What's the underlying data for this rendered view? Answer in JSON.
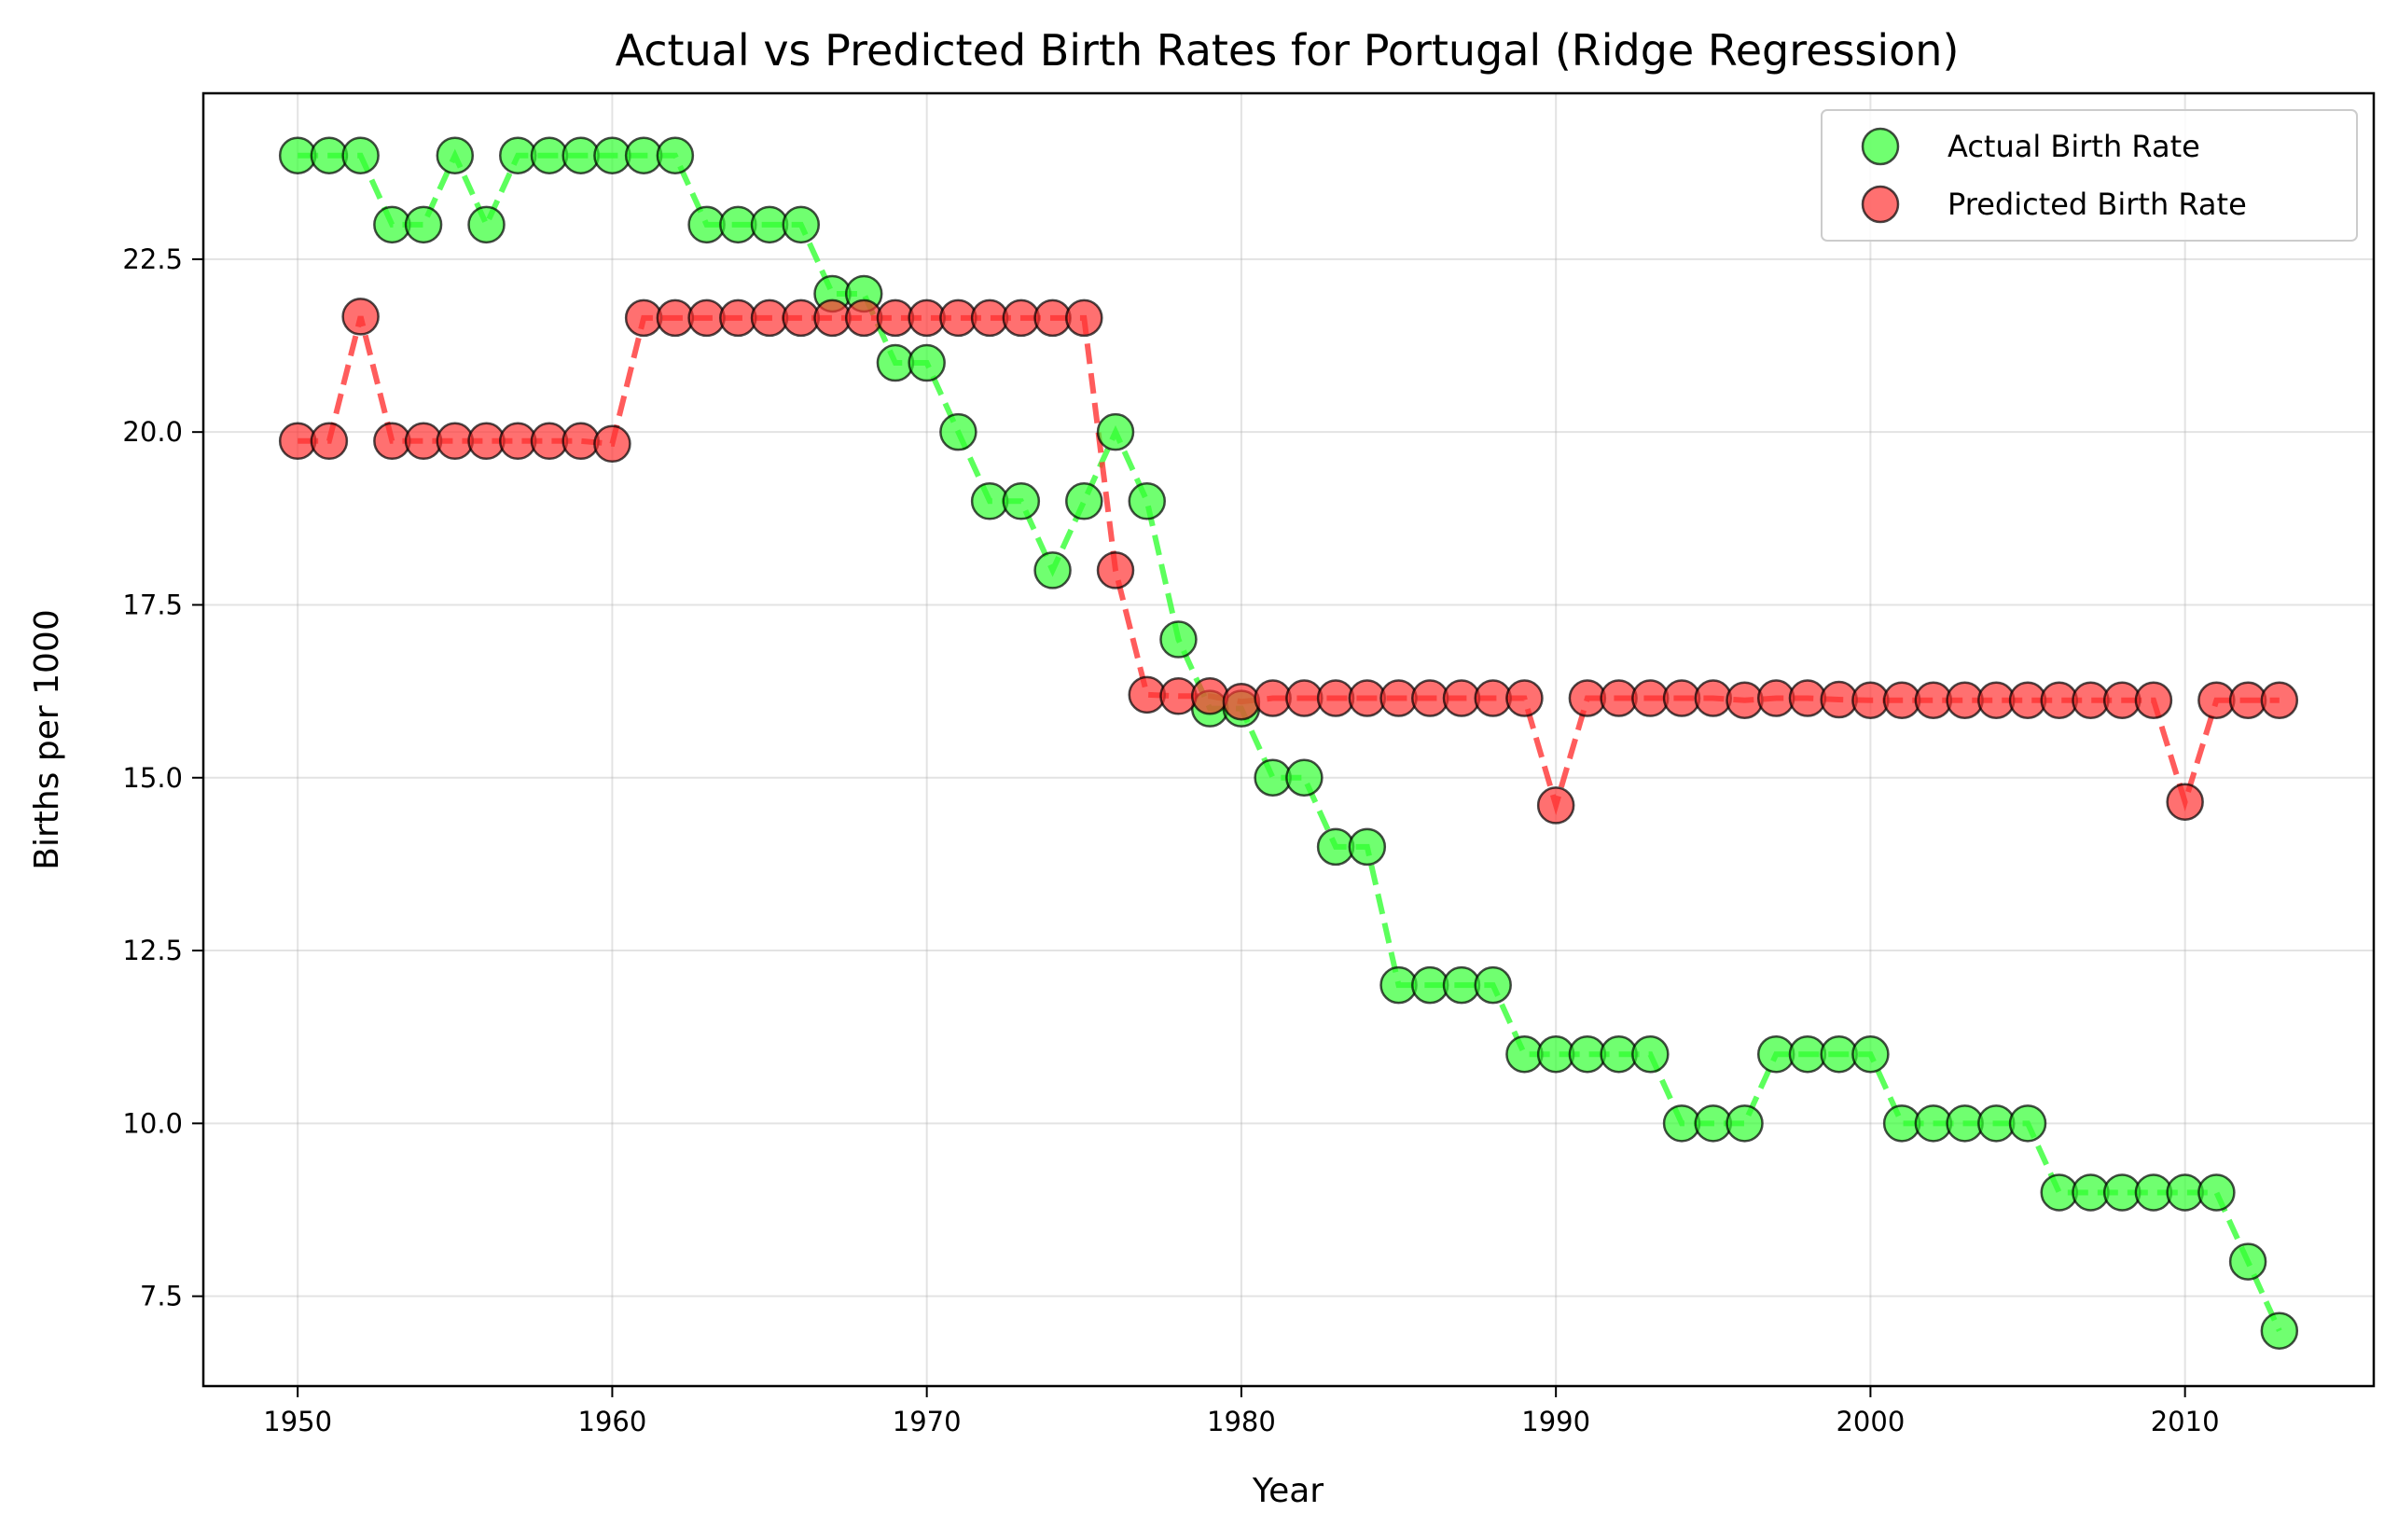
{
  "chart_data": {
    "type": "line",
    "title": "Actual vs Predicted Birth Rates for Portugal (Ridge Regression)",
    "xlabel": "Year",
    "ylabel": "Births per 1000",
    "xlim": [
      1947,
      2016
    ],
    "ylim": [
      6.2,
      24.9
    ],
    "xticks": [
      1950,
      1960,
      1970,
      1980,
      1990,
      2000,
      2010
    ],
    "yticks": [
      7.5,
      10.0,
      12.5,
      15.0,
      17.5,
      20.0,
      22.5
    ],
    "grid": true,
    "legend_position": "top-right",
    "x": [
      1950,
      1951,
      1952,
      1953,
      1954,
      1955,
      1956,
      1957,
      1958,
      1959,
      1960,
      1961,
      1962,
      1963,
      1964,
      1965,
      1966,
      1967,
      1968,
      1969,
      1970,
      1971,
      1972,
      1973,
      1974,
      1975,
      1976,
      1977,
      1978,
      1979,
      1980,
      1981,
      1982,
      1983,
      1984,
      1985,
      1986,
      1987,
      1988,
      1989,
      1990,
      1991,
      1992,
      1993,
      1994,
      1995,
      1996,
      1997,
      1998,
      1999,
      2000,
      2001,
      2002,
      2003,
      2004,
      2005,
      2006,
      2007,
      2008,
      2009,
      2010,
      2011,
      2012,
      2013
    ],
    "series": [
      {
        "name": "Actual Birth Rate",
        "color": "#33ff33",
        "values": [
          24,
          24,
          24,
          23,
          23,
          24,
          23,
          24,
          24,
          24,
          24,
          24,
          24,
          23,
          23,
          23,
          23,
          22,
          22,
          21,
          21,
          20,
          19,
          19,
          18,
          19,
          20,
          19,
          17,
          16,
          16,
          15,
          15,
          14,
          14,
          12,
          12,
          12,
          12,
          11,
          11,
          11,
          11,
          11,
          10,
          10,
          10,
          11,
          11,
          11,
          11,
          10,
          10,
          10,
          10,
          10,
          9,
          9,
          9,
          9,
          9,
          9,
          8,
          7
        ]
      },
      {
        "name": "Predicted Birth Rate",
        "color": "#ff3333",
        "values": [
          19.87,
          19.87,
          21.67,
          19.87,
          19.87,
          19.87,
          19.87,
          19.87,
          19.87,
          19.87,
          19.83,
          21.65,
          21.65,
          21.65,
          21.65,
          21.65,
          21.65,
          21.65,
          21.65,
          21.65,
          21.65,
          21.65,
          21.65,
          21.65,
          21.65,
          21.65,
          18.0,
          16.2,
          16.18,
          16.18,
          16.1,
          16.15,
          16.15,
          16.15,
          16.15,
          16.15,
          16.15,
          16.15,
          16.15,
          16.15,
          14.6,
          16.15,
          16.15,
          16.15,
          16.15,
          16.15,
          16.12,
          16.15,
          16.15,
          16.13,
          16.12,
          16.12,
          16.12,
          16.12,
          16.12,
          16.12,
          16.12,
          16.12,
          16.12,
          16.12,
          14.65,
          16.12,
          16.12,
          16.12
        ]
      }
    ]
  }
}
